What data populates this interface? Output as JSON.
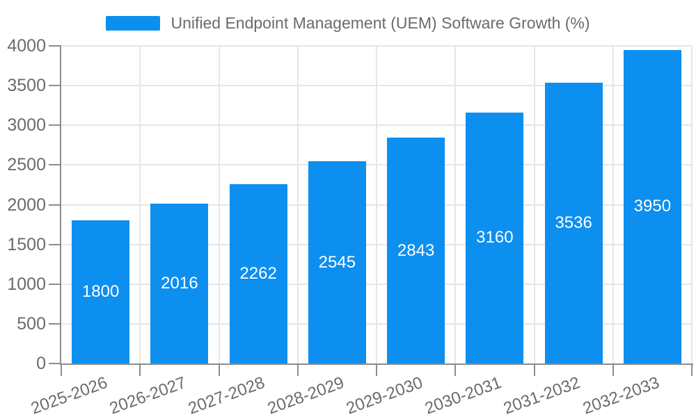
{
  "chart_data": {
    "type": "bar",
    "title": "Unified Endpoint Management (UEM) Software Growth (%)",
    "legend_entries": [
      "Unified Endpoint Management (UEM) Software Growth (%)"
    ],
    "legend_position": "top-center",
    "categories": [
      "2025-2026",
      "2026-2027",
      "2027-2028",
      "2028-2029",
      "2029-2030",
      "2030-2031",
      "2031-2032",
      "2032-2033"
    ],
    "values": [
      1800,
      2016,
      2262,
      2545,
      2843,
      3160,
      3536,
      3950
    ],
    "bar_labels": [
      "1800",
      "2016",
      "2262",
      "2545",
      "2843",
      "3160",
      "3536",
      "3950"
    ],
    "bar_label_position": "inside-center",
    "xlabel": "",
    "ylabel": "",
    "ylim": [
      0,
      4000
    ],
    "ytick_interval": 500,
    "ytick_labels": [
      "0",
      "500",
      "1000",
      "1500",
      "2000",
      "2500",
      "3000",
      "3500",
      "4000"
    ],
    "grid": true,
    "x_tick_label_rotation_deg": 20,
    "colors": {
      "bar": "#0d8ff0",
      "bar_label_text": "#ffffff",
      "axis_text": "#6b6b6b",
      "axis_line": "#8c8c8c",
      "gridline": "#e6e6e6",
      "background": "#ffffff"
    }
  }
}
